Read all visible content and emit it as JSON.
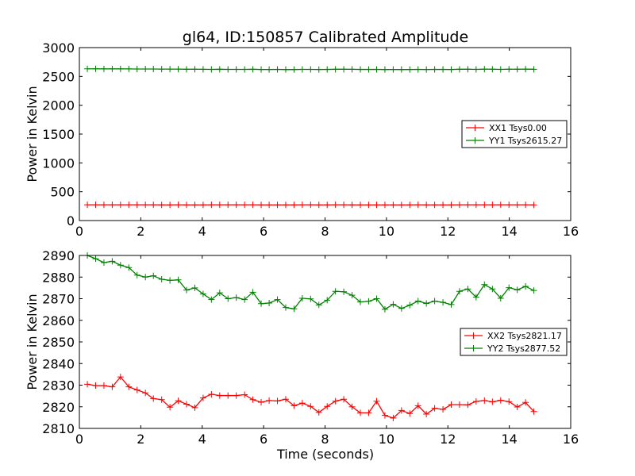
{
  "chart_data": [
    {
      "type": "line",
      "title": "gl64, ID:150857 Calibrated Amplitude",
      "xlabel": "",
      "ylabel": "Power in Kelvin",
      "xlim": [
        0,
        16
      ],
      "ylim": [
        0,
        3000
      ],
      "xticks": [
        "0",
        "2",
        "4",
        "6",
        "8",
        "10",
        "12",
        "14",
        "16"
      ],
      "yticks": [
        "0",
        "500",
        "1000",
        "1500",
        "2000",
        "2500",
        "3000"
      ],
      "legend_placement": "center-right",
      "x": [
        0.26,
        0.53,
        0.8,
        1.07,
        1.34,
        1.61,
        1.88,
        2.15,
        2.41,
        2.68,
        2.95,
        3.22,
        3.49,
        3.76,
        4.03,
        4.3,
        4.57,
        4.84,
        5.11,
        5.38,
        5.65,
        5.92,
        6.18,
        6.45,
        6.72,
        6.99,
        7.26,
        7.53,
        7.8,
        8.07,
        8.34,
        8.61,
        8.88,
        9.15,
        9.42,
        9.68,
        9.95,
        10.22,
        10.49,
        10.76,
        11.03,
        11.3,
        11.57,
        11.84,
        12.11,
        12.38,
        12.65,
        12.92,
        13.19,
        13.45,
        13.72,
        13.99,
        14.26,
        14.53,
        14.8
      ],
      "series": [
        {
          "name": "XX1 Tsys0.00",
          "color": "#ff0000",
          "values": [
            273,
            273,
            273,
            273,
            274,
            273,
            273,
            273,
            273,
            272,
            272,
            273,
            272,
            272,
            272,
            273,
            273,
            273,
            273,
            273,
            273,
            272,
            272,
            272,
            272,
            272,
            273,
            273,
            272,
            272,
            273,
            273,
            272,
            272,
            272,
            272,
            272,
            272,
            272,
            272,
            273,
            272,
            272,
            272,
            272,
            273,
            273,
            273,
            273,
            273,
            273,
            273,
            273,
            273,
            272
          ]
        },
        {
          "name": "YY1 Tsys2615.27",
          "color": "#008000",
          "values": [
            2632,
            2632,
            2631,
            2631,
            2631,
            2630,
            2628,
            2628,
            2628,
            2627,
            2627,
            2627,
            2624,
            2625,
            2623,
            2622,
            2624,
            2622,
            2622,
            2622,
            2624,
            2620,
            2620,
            2622,
            2619,
            2619,
            2622,
            2622,
            2620,
            2621,
            2624,
            2624,
            2623,
            2621,
            2621,
            2622,
            2619,
            2620,
            2619,
            2620,
            2621,
            2620,
            2621,
            2621,
            2620,
            2624,
            2625,
            2622,
            2626,
            2625,
            2622,
            2625,
            2625,
            2626,
            2624
          ]
        }
      ]
    },
    {
      "type": "line",
      "title": "",
      "xlabel": "Time (seconds)",
      "ylabel": "Power in Kelvin",
      "xlim": [
        0,
        16
      ],
      "ylim": [
        2810,
        2890
      ],
      "xticks": [
        "0",
        "2",
        "4",
        "6",
        "8",
        "10",
        "12",
        "14",
        "16"
      ],
      "yticks": [
        "2810",
        "2820",
        "2830",
        "2840",
        "2850",
        "2860",
        "2870",
        "2880",
        "2890"
      ],
      "legend_placement": "center-right",
      "x": [
        0.26,
        0.53,
        0.8,
        1.07,
        1.34,
        1.61,
        1.88,
        2.15,
        2.41,
        2.68,
        2.95,
        3.22,
        3.49,
        3.76,
        4.03,
        4.3,
        4.57,
        4.84,
        5.11,
        5.38,
        5.65,
        5.92,
        6.18,
        6.45,
        6.72,
        6.99,
        7.26,
        7.53,
        7.8,
        8.07,
        8.34,
        8.61,
        8.88,
        9.15,
        9.42,
        9.68,
        9.95,
        10.22,
        10.49,
        10.76,
        11.03,
        11.3,
        11.57,
        11.84,
        12.11,
        12.38,
        12.65,
        12.92,
        13.19,
        13.45,
        13.72,
        13.99,
        14.26,
        14.53,
        14.8
      ],
      "series": [
        {
          "name": "XX2 Tsys2821.17",
          "color": "#ff0000",
          "values": [
            2830.4,
            2829.8,
            2829.8,
            2829.2,
            2833.8,
            2829.2,
            2827.8,
            2826.4,
            2823.8,
            2823.3,
            2819.8,
            2822.8,
            2821.2,
            2819.6,
            2824.1,
            2825.8,
            2825.2,
            2825.2,
            2825.2,
            2825.6,
            2823.3,
            2822.1,
            2822.9,
            2822.7,
            2823.5,
            2820.5,
            2821.7,
            2820.2,
            2817.4,
            2820.2,
            2822.6,
            2823.5,
            2820.0,
            2817.2,
            2817.2,
            2822.6,
            2816.0,
            2814.8,
            2818.3,
            2816.9,
            2820.5,
            2816.6,
            2819.3,
            2818.8,
            2821.0,
            2821.0,
            2820.9,
            2822.5,
            2822.9,
            2822.3,
            2823.0,
            2822.4,
            2819.9,
            2822.0,
            2817.8
          ]
        },
        {
          "name": "YY2 Tsys2877.52",
          "color": "#008000",
          "values": [
            2890.0,
            2888.5,
            2886.7,
            2887.3,
            2885.5,
            2884.4,
            2880.9,
            2880.0,
            2880.6,
            2879.0,
            2878.5,
            2878.7,
            2874.0,
            2875.0,
            2872.2,
            2869.6,
            2872.7,
            2870.0,
            2870.5,
            2869.6,
            2873.0,
            2867.7,
            2868.0,
            2869.6,
            2865.9,
            2865.3,
            2870.2,
            2869.9,
            2867.1,
            2869.3,
            2873.4,
            2873.2,
            2871.6,
            2868.5,
            2868.8,
            2870.0,
            2865.1,
            2867.4,
            2865.5,
            2867.0,
            2868.9,
            2867.8,
            2868.9,
            2868.3,
            2867.3,
            2873.4,
            2874.5,
            2870.7,
            2876.5,
            2874.5,
            2870.2,
            2875.1,
            2874.1,
            2875.7,
            2873.8
          ]
        }
      ]
    }
  ]
}
